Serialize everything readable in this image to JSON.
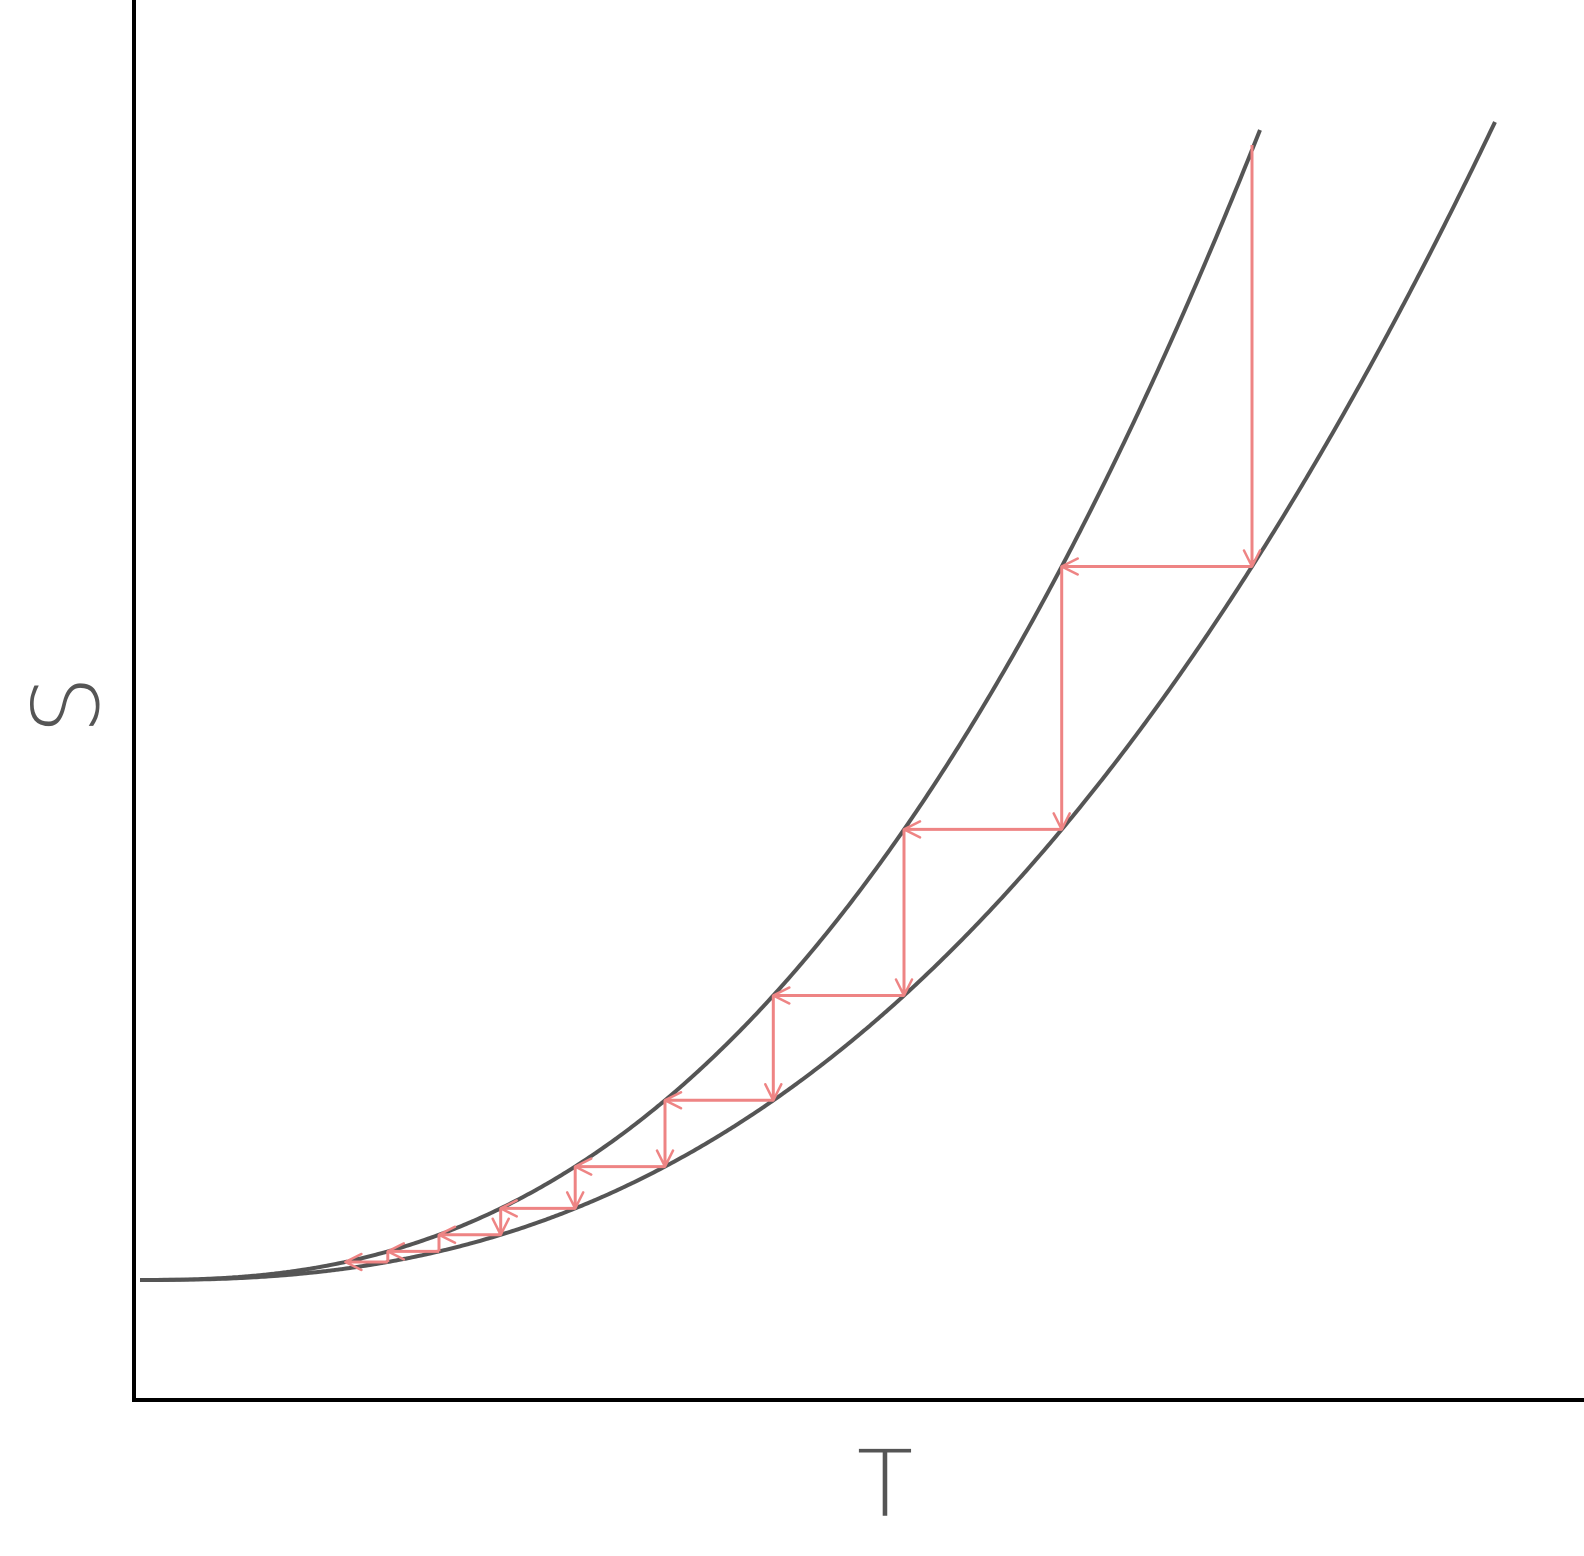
{
  "diagram": {
    "x_axis_label": "T",
    "y_axis_label": "S",
    "colors": {
      "axis": "#000000",
      "curve": "#555555",
      "arrow": "#ee8484",
      "label": "#555555"
    },
    "curves": [
      {
        "name": "upper-curve"
      },
      {
        "name": "lower-curve"
      }
    ],
    "staircase_steps": 9,
    "arrow_icon": "arrowhead-icon"
  }
}
